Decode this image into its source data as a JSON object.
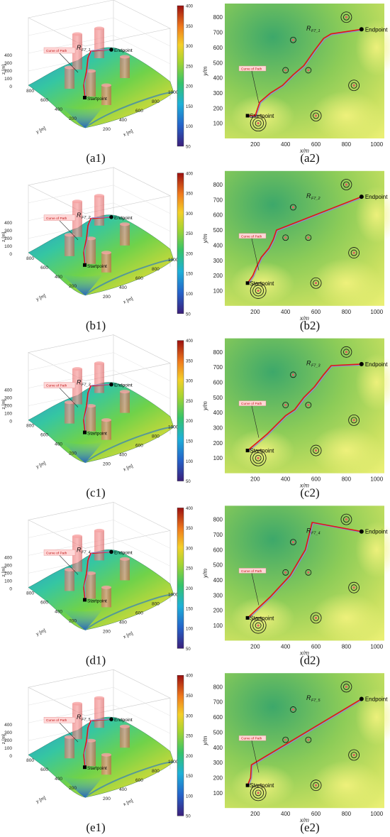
{
  "colors": {
    "low": "#3f2a8a",
    "mid_blue": "#2f8fd6",
    "mid_green": "#39c46a",
    "high": "#9d1b1b",
    "path": "#e11414",
    "vc_curve": "#8a8ad6",
    "obstacle": "#f08080"
  },
  "icons": {
    "startpoint": "black-square-marker",
    "endpoint": "black-circle-marker",
    "threat": "concentric-circles"
  },
  "colorbar": {
    "ticks": [
      "400",
      "350",
      "300",
      "250",
      "200",
      "150",
      "100",
      "50"
    ],
    "min": 50,
    "max": 400
  },
  "plot3d": {
    "z_ticks": [
      "400",
      "300",
      "200",
      "100",
      "0"
    ],
    "y_ticks": [
      "800",
      "600",
      "400",
      "200"
    ],
    "x_ticks": [
      "200",
      "400",
      "600",
      "800",
      "1000"
    ],
    "z_label": "z [m]",
    "y_label": "y [m]",
    "x_label": "x [m]",
    "curve_label": "Curve of Path",
    "start_label": "Startpoint",
    "end_label": "Endpoint"
  },
  "plot2d": {
    "y_ticks": [
      "800",
      "700",
      "600",
      "500",
      "400",
      "300",
      "200",
      "100"
    ],
    "x_ticks": [
      "200",
      "400",
      "600",
      "800",
      "1000"
    ],
    "x_label": "x/m",
    "y_label": "y/m",
    "curve_label": "Curve of Path",
    "start_label": "Startpoint",
    "end_label": "Endpoint"
  },
  "threats": [
    {
      "x": 220,
      "y": 100,
      "rings": 3
    },
    {
      "x": 600,
      "y": 150,
      "rings": 2
    },
    {
      "x": 400,
      "y": 450,
      "rings": 1
    },
    {
      "x": 550,
      "y": 450,
      "rings": 1
    },
    {
      "x": 450,
      "y": 650,
      "rings": 1
    },
    {
      "x": 800,
      "y": 800,
      "rings": 2
    },
    {
      "x": 850,
      "y": 350,
      "rings": 2
    }
  ],
  "start_point": {
    "x": 150,
    "y": 150
  },
  "end_point": {
    "x": 900,
    "y": 720
  },
  "rows": [
    {
      "caption_3d": "(a1)",
      "caption_2d": "(a2)",
      "r_label": "R",
      "r_sub": "F7_1",
      "path": [
        [
          150,
          150
        ],
        [
          200,
          150
        ],
        [
          230,
          240
        ],
        [
          300,
          300
        ],
        [
          380,
          350
        ],
        [
          450,
          420
        ],
        [
          520,
          480
        ],
        [
          590,
          580
        ],
        [
          650,
          660
        ],
        [
          700,
          690
        ],
        [
          900,
          720
        ]
      ]
    },
    {
      "caption_3d": "(b1)",
      "caption_2d": "(b2)",
      "r_label": "R",
      "r_sub": "F7_2",
      "path": [
        [
          150,
          150
        ],
        [
          185,
          200
        ],
        [
          210,
          260
        ],
        [
          240,
          320
        ],
        [
          290,
          380
        ],
        [
          320,
          440
        ],
        [
          340,
          500
        ],
        [
          900,
          720
        ]
      ]
    },
    {
      "caption_3d": "(c1)",
      "caption_2d": "(c2)",
      "r_label": "R",
      "r_sub": "F7_3",
      "path": [
        [
          150,
          150
        ],
        [
          210,
          200
        ],
        [
          280,
          260
        ],
        [
          330,
          310
        ],
        [
          400,
          380
        ],
        [
          460,
          420
        ],
        [
          520,
          500
        ],
        [
          590,
          570
        ],
        [
          650,
          650
        ],
        [
          700,
          710
        ],
        [
          900,
          720
        ]
      ]
    },
    {
      "caption_3d": "(d1)",
      "caption_2d": "(d2)",
      "r_label": "R",
      "r_sub": "F7_4",
      "path": [
        [
          150,
          150
        ],
        [
          300,
          290
        ],
        [
          430,
          430
        ],
        [
          530,
          600
        ],
        [
          575,
          780
        ],
        [
          900,
          720
        ]
      ]
    },
    {
      "caption_3d": "(e1)",
      "caption_2d": "(e2)",
      "r_label": "R",
      "r_sub": "F7_5",
      "path": [
        [
          150,
          150
        ],
        [
          170,
          200
        ],
        [
          175,
          285
        ],
        [
          900,
          720
        ]
      ]
    }
  ]
}
